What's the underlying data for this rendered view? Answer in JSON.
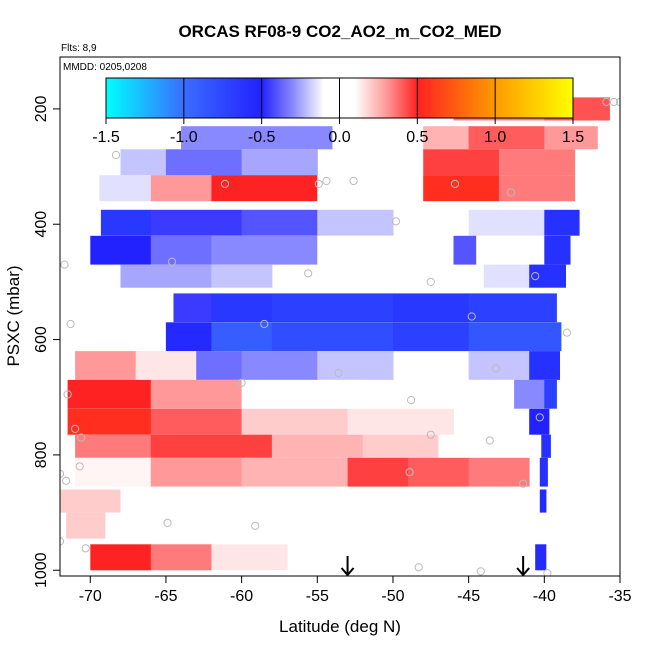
{
  "chart_data": {
    "type": "heatmap",
    "title": "ORCAS RF08-9 CO2_AO2_m_CO2_MED",
    "annotations": {
      "flights": "Flts: 8,9",
      "dates": "MMDD: 0205,0208"
    },
    "xlabel": "Latitude (deg N)",
    "ylabel": "PSXC (mbar)",
    "xlim": [
      -72.0,
      -35.0
    ],
    "ylim": [
      1010,
      110
    ],
    "xticks": [
      -70,
      -65,
      -60,
      -55,
      -50,
      -45,
      -40,
      -35
    ],
    "xtick_labels": [
      "-70",
      "-65",
      "-60",
      "-55",
      "-50",
      "-45",
      "-40",
      "-35"
    ],
    "yticks": [
      200,
      400,
      600,
      800,
      1000
    ],
    "ytick_labels": [
      "200",
      "400",
      "600",
      "800",
      "1000"
    ],
    "colorbar": {
      "range": [
        -1.5,
        1.5
      ],
      "ticks": [
        -1.5,
        -1.0,
        -0.5,
        0.0,
        0.5,
        1.0,
        1.5
      ],
      "tick_labels": [
        "-1.5",
        "-1.0",
        "-0.5",
        "0.0",
        "0.5",
        "1.0",
        "1.5"
      ]
    },
    "arrows_x": [
      -53.0,
      -41.4
    ],
    "bands": [
      {
        "pmin": 180,
        "pmax": 220,
        "segments": [
          [
            -71.5,
            -62,
            0.05
          ],
          [
            -62,
            -53,
            -0.08
          ],
          [
            -52,
            -46,
            0.12
          ],
          [
            -46,
            -40,
            0.35
          ],
          [
            -40,
            -35.7,
            0.42
          ]
        ]
      },
      {
        "pmin": 230,
        "pmax": 270,
        "segments": [
          [
            -68.5,
            -64,
            0.08
          ],
          [
            -64,
            -54,
            -0.3
          ],
          [
            -54,
            -51,
            -0.05
          ],
          [
            -48,
            -45,
            0.25
          ],
          [
            -45,
            -40,
            0.4
          ],
          [
            -40,
            -36.5,
            0.3
          ]
        ]
      },
      {
        "pmin": 270,
        "pmax": 315,
        "segments": [
          [
            -68,
            -65,
            -0.2
          ],
          [
            -65,
            -60,
            -0.35
          ],
          [
            -60,
            -55,
            -0.25
          ],
          [
            -48,
            -43,
            0.45
          ],
          [
            -43,
            -38,
            0.35
          ]
        ]
      },
      {
        "pmin": 315,
        "pmax": 360,
        "segments": [
          [
            -69.4,
            -66,
            -0.15
          ],
          [
            -66,
            -62,
            0.3
          ],
          [
            -62,
            -55,
            0.5
          ],
          [
            -55,
            -52,
            -0.1
          ],
          [
            -48,
            -43,
            0.55
          ],
          [
            -43,
            -38,
            0.35
          ]
        ]
      },
      {
        "pmin": 375,
        "pmax": 420,
        "segments": [
          [
            -69.3,
            -66,
            -0.65
          ],
          [
            -66,
            -60,
            -0.45
          ],
          [
            -60,
            -55,
            -0.4
          ],
          [
            -55,
            -50,
            -0.2
          ],
          [
            -45,
            -40,
            -0.15
          ],
          [
            -40,
            -37.7,
            -0.6
          ]
        ]
      },
      {
        "pmin": 420,
        "pmax": 470,
        "segments": [
          [
            -70,
            -66,
            -0.5
          ],
          [
            -66,
            -62,
            -0.35
          ],
          [
            -62,
            -55,
            -0.3
          ],
          [
            -55,
            -50,
            -0.1
          ],
          [
            -46,
            -44.5,
            -0.4
          ],
          [
            -44.5,
            -40,
            -0.1
          ],
          [
            -40,
            -38.3,
            -0.6
          ]
        ]
      },
      {
        "pmin": 470,
        "pmax": 510,
        "segments": [
          [
            -68,
            -62,
            -0.25
          ],
          [
            -62,
            -58,
            -0.2
          ],
          [
            -44,
            -41,
            -0.15
          ],
          [
            -41,
            -38.6,
            -0.6
          ]
        ]
      },
      {
        "pmin": 520,
        "pmax": 570,
        "segments": [
          [
            -64.5,
            -62,
            -0.45
          ],
          [
            -62,
            -58,
            -0.65
          ],
          [
            -58,
            -50,
            -0.7
          ],
          [
            -50,
            -45,
            -0.65
          ],
          [
            -45,
            -39.2,
            -0.7
          ]
        ]
      },
      {
        "pmin": 570,
        "pmax": 620,
        "segments": [
          [
            -65,
            -62,
            -0.55
          ],
          [
            -62,
            -58,
            -0.9
          ],
          [
            -58,
            -50,
            -0.8
          ],
          [
            -50,
            -45,
            -0.7
          ],
          [
            -45,
            -38.9,
            -0.85
          ]
        ]
      },
      {
        "pmin": 620,
        "pmax": 670,
        "segments": [
          [
            -71.0,
            -67,
            0.3
          ],
          [
            -67,
            -63,
            0.15
          ],
          [
            -63,
            -60,
            -0.35
          ],
          [
            -60,
            -55,
            -0.3
          ],
          [
            -55,
            -50,
            -0.2
          ],
          [
            -45,
            -41,
            -0.2
          ],
          [
            -41,
            -39.0,
            -0.6
          ]
        ]
      },
      {
        "pmin": 670,
        "pmax": 720,
        "segments": [
          [
            -71.5,
            -66,
            0.5
          ],
          [
            -66,
            -60,
            0.3
          ],
          [
            -60,
            -52,
            0.05
          ],
          [
            -45,
            -42,
            -0.05
          ],
          [
            -42,
            -40,
            -0.3
          ],
          [
            -40,
            -39.2,
            -0.7
          ]
        ]
      },
      {
        "pmin": 720,
        "pmax": 765,
        "segments": [
          [
            -71.5,
            -66,
            0.55
          ],
          [
            -66,
            -60,
            0.4
          ],
          [
            -60,
            -53,
            0.2
          ],
          [
            -53,
            -46,
            0.15
          ],
          [
            -41,
            -39.7,
            -0.5
          ]
        ]
      },
      {
        "pmin": 765,
        "pmax": 805,
        "segments": [
          [
            -71.0,
            -66,
            0.35
          ],
          [
            -66,
            -58,
            0.45
          ],
          [
            -58,
            -52,
            0.25
          ],
          [
            -52,
            -47,
            0.2
          ],
          [
            -47,
            -44,
            0.1
          ],
          [
            -40.2,
            -39.6,
            -0.6
          ]
        ]
      },
      {
        "pmin": 805,
        "pmax": 855,
        "segments": [
          [
            -71.0,
            -66,
            0.12
          ],
          [
            -66,
            -60,
            0.3
          ],
          [
            -60,
            -53,
            0.25
          ],
          [
            -53,
            -49,
            0.45
          ],
          [
            -49,
            -45,
            0.4
          ],
          [
            -45,
            -41,
            0.35
          ],
          [
            -40.3,
            -39.8,
            -0.6
          ]
        ]
      },
      {
        "pmin": 860,
        "pmax": 900,
        "segments": [
          [
            -72.0,
            -68,
            0.2
          ],
          [
            -68,
            -65,
            0.05
          ],
          [
            -65,
            -53,
            0.06
          ],
          [
            -53,
            -49,
            0.05
          ],
          [
            -49,
            -41,
            0.1
          ],
          [
            -40.3,
            -39.9,
            -0.55
          ]
        ]
      },
      {
        "pmin": 900,
        "pmax": 945,
        "segments": [
          [
            -71.6,
            -69,
            0.2
          ],
          [
            -69,
            -62,
            0.1
          ],
          [
            -52,
            -48,
            0.08
          ],
          [
            -48,
            -45,
            0.1
          ],
          [
            -45,
            -40.5,
            0.06
          ]
        ]
      },
      {
        "pmin": 955,
        "pmax": 1000,
        "segments": [
          [
            -70.0,
            -66,
            0.5
          ],
          [
            -66,
            -62,
            0.35
          ],
          [
            -62,
            -57,
            0.15
          ],
          [
            -43,
            -40.6,
            -0.05
          ],
          [
            -40.6,
            -39.9,
            -0.55
          ]
        ]
      }
    ],
    "points": [
      [
        -67.6,
        190
      ],
      [
        -62.8,
        190
      ],
      [
        -51.7,
        190
      ],
      [
        -68.3,
        280
      ],
      [
        -61.1,
        330
      ],
      [
        -54.9,
        330
      ],
      [
        -54.4,
        325
      ],
      [
        -52.6,
        325
      ],
      [
        -49.8,
        395
      ],
      [
        -45.9,
        330
      ],
      [
        -42.2,
        345
      ],
      [
        -71.7,
        470
      ],
      [
        -64.6,
        465
      ],
      [
        -55.6,
        485
      ],
      [
        -47.5,
        500
      ],
      [
        -40.6,
        490
      ],
      [
        -44.8,
        560
      ],
      [
        -71.3,
        573
      ],
      [
        -58.5,
        573
      ],
      [
        -38.5,
        588
      ],
      [
        -43.2,
        650
      ],
      [
        -53.6,
        658
      ],
      [
        -60.0,
        675
      ],
      [
        -71.5,
        695
      ],
      [
        -48.8,
        705
      ],
      [
        -40.3,
        735
      ],
      [
        -71.0,
        755
      ],
      [
        -70.6,
        770
      ],
      [
        -47.5,
        765
      ],
      [
        -43.6,
        775
      ],
      [
        -70.7,
        820
      ],
      [
        -72.0,
        833
      ],
      [
        -71.6,
        845
      ],
      [
        -48.9,
        830
      ],
      [
        -41.4,
        850
      ],
      [
        -64.9,
        918
      ],
      [
        -59.1,
        923
      ],
      [
        -72.0,
        950
      ],
      [
        -70.3,
        962
      ],
      [
        -48.3,
        995
      ],
      [
        -44.2,
        1002
      ],
      [
        -39.8,
        1005
      ],
      [
        -35.9,
        188
      ],
      [
        -35.4,
        188
      ],
      [
        -35.0,
        188
      ]
    ]
  }
}
